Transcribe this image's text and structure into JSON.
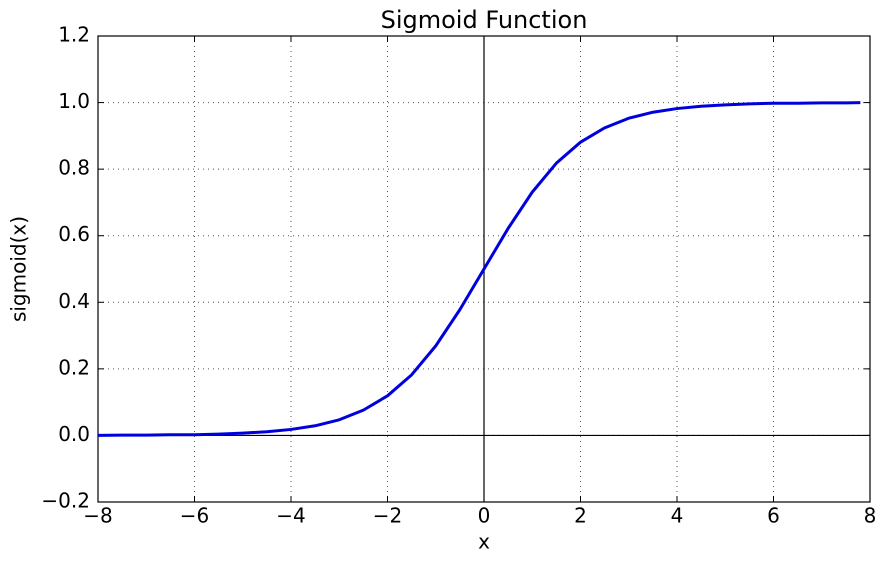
{
  "chart_data": {
    "type": "line",
    "title": "Sigmoid Function",
    "x_label": "x",
    "y_label": "sigmoid(x)",
    "x": [
      -8,
      -7.5,
      -7,
      -6.5,
      -6,
      -5.5,
      -5,
      -4.5,
      -4,
      -3.5,
      -3,
      -2.5,
      -2,
      -1.5,
      -1,
      -0.5,
      0,
      0.5,
      1,
      1.5,
      2,
      2.5,
      3,
      3.5,
      4,
      4.5,
      5,
      5.5,
      6,
      6.5,
      7,
      7.5,
      7.8
    ],
    "series": [
      {
        "color": "#0000dd",
        "values": [
          0.0,
          0.001,
          0.001,
          0.002,
          0.002,
          0.004,
          0.007,
          0.011,
          0.018,
          0.029,
          0.047,
          0.076,
          0.119,
          0.182,
          0.269,
          0.378,
          0.5,
          0.622,
          0.731,
          0.818,
          0.881,
          0.924,
          0.953,
          0.971,
          0.982,
          0.989,
          0.993,
          0.996,
          0.998,
          0.998,
          0.999,
          0.999,
          1.0
        ]
      }
    ],
    "xlim": [
      -8,
      8
    ],
    "xticks": [
      {
        "value": -8,
        "label": "−8"
      },
      {
        "value": -6,
        "label": "−6"
      },
      {
        "value": -4,
        "label": "−4"
      },
      {
        "value": -2,
        "label": "−2"
      },
      0,
      2,
      4,
      6,
      8
    ],
    "ylim": [
      -0.2,
      1.2
    ],
    "yticks": [
      {
        "value": -0.2,
        "label": "−0.2"
      },
      {
        "value": 0,
        "label": "0.0"
      },
      0.2,
      0.4,
      0.6,
      0.8,
      {
        "value": 1,
        "label": "1.0"
      },
      1.2
    ],
    "grid": true
  }
}
